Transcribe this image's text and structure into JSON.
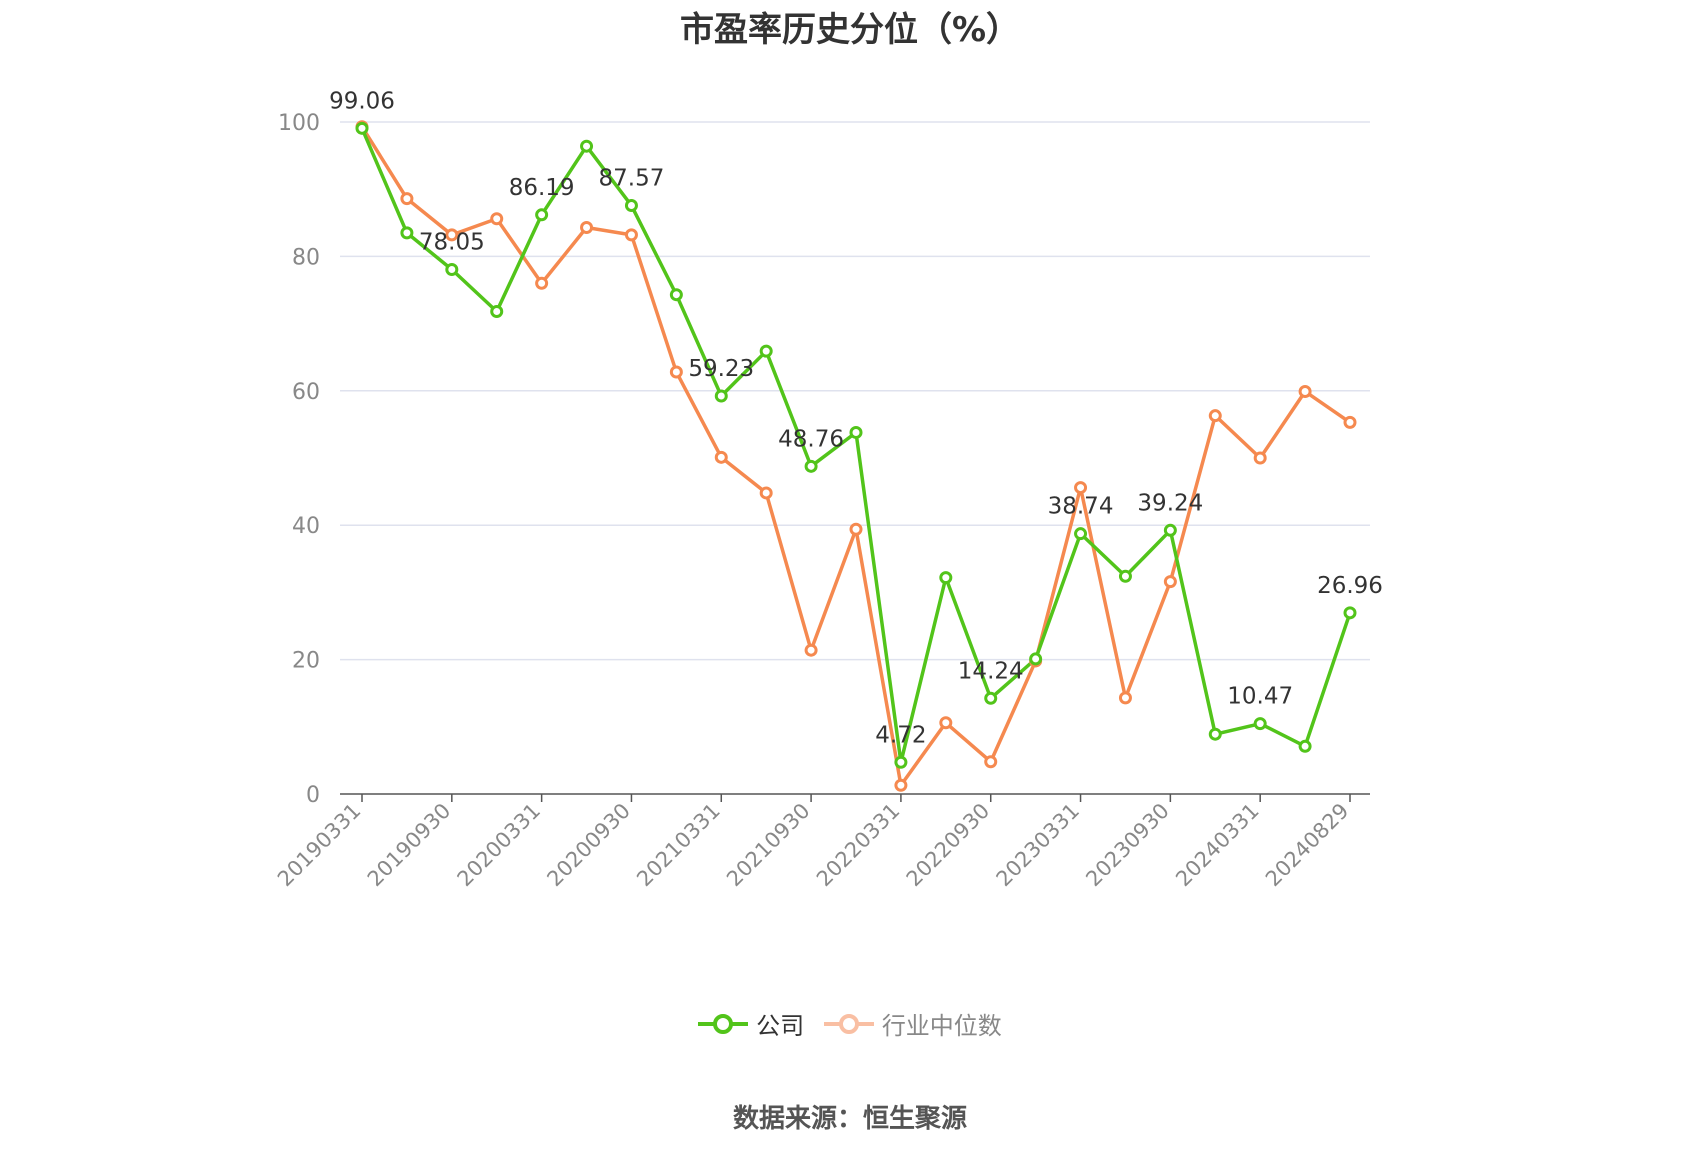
{
  "chart_data": {
    "type": "line",
    "title": "市盈率历史分位（%）",
    "x_tick_labels": [
      "20190331",
      "20190930",
      "20200331",
      "20200930",
      "20210331",
      "20210930",
      "20220331",
      "20220930",
      "20230331",
      "20230930",
      "20240331",
      "20240829"
    ],
    "ylim": [
      0,
      100
    ],
    "y_ticks": [
      0,
      20,
      40,
      60,
      80,
      100
    ],
    "grid": true,
    "legend_position": "bottom",
    "series": [
      {
        "name": "公司",
        "color": "#52c41a",
        "values": [
          99.06,
          83.5,
          78.05,
          71.8,
          86.19,
          96.4,
          87.57,
          74.3,
          59.23,
          65.9,
          48.76,
          53.8,
          4.72,
          32.2,
          14.24,
          20.1,
          38.74,
          32.4,
          39.24,
          8.9,
          10.47,
          7.1,
          26.96
        ],
        "labels": {
          "0": "99.06",
          "2": "78.05",
          "4": "86.19",
          "6": "87.57",
          "8": "59.23",
          "10": "48.76",
          "12": "4.72",
          "14": "14.24",
          "16": "38.74",
          "18": "39.24",
          "20": "10.47",
          "22": "26.96"
        }
      },
      {
        "name": "行业中位数",
        "color": "#f5894f",
        "values": [
          99.3,
          88.6,
          83.2,
          85.6,
          76.0,
          84.3,
          83.2,
          62.8,
          50.1,
          44.8,
          21.4,
          39.4,
          1.3,
          10.6,
          4.8,
          19.8,
          45.6,
          14.3,
          31.6,
          56.3,
          50.0,
          59.9,
          55.3
        ]
      }
    ]
  },
  "legend": {
    "company": "公司",
    "industry": "行业中位数"
  },
  "source": "数据来源：恒生聚源"
}
